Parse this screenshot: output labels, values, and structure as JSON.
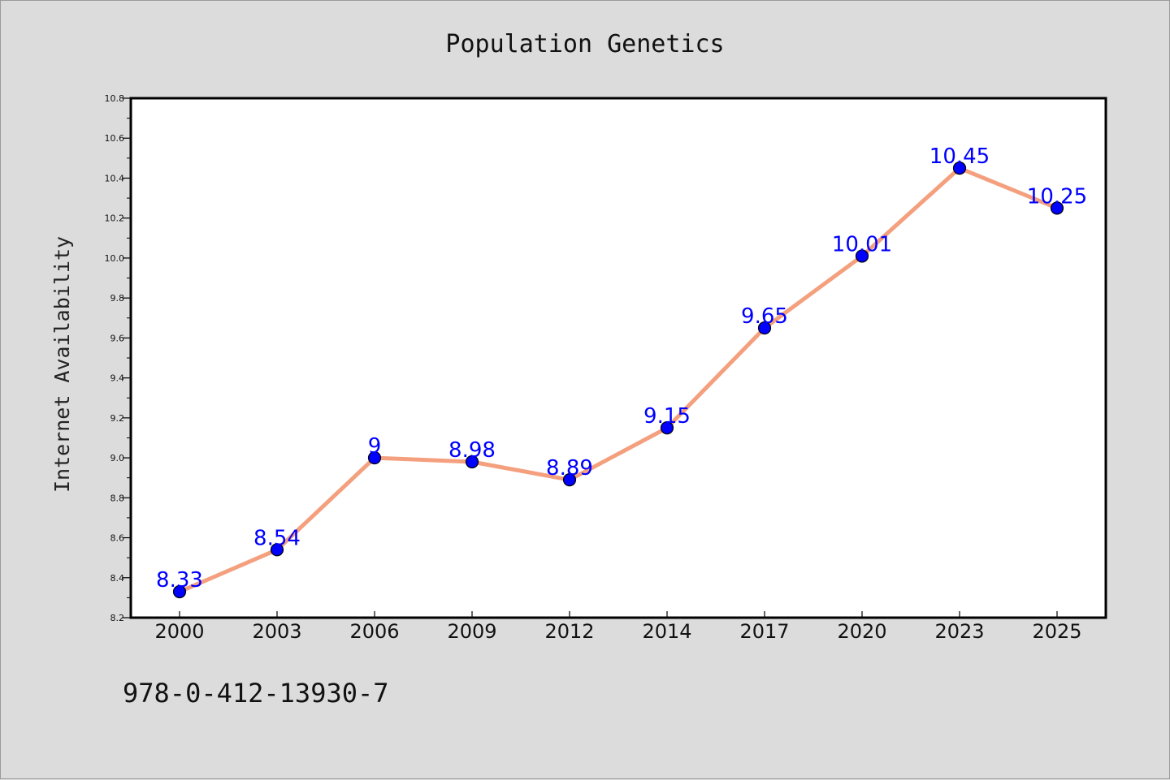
{
  "chart_data": {
    "type": "line",
    "title": "Population Genetics",
    "xlabel": "",
    "ylabel": "Internet Availability",
    "categories": [
      "2000",
      "2003",
      "2006",
      "2009",
      "2012",
      "2014",
      "2017",
      "2020",
      "2023",
      "2025"
    ],
    "series": [
      {
        "values": [
          8.33,
          8.54,
          9,
          8.98,
          8.89,
          9.15,
          9.65,
          10.01,
          10.45,
          10.25
        ],
        "labels": [
          "8.33",
          "8.54",
          "9",
          "8.98",
          "8.89",
          "9.15",
          "9.65",
          "10.01",
          "10.45",
          "10.25"
        ],
        "line_color": "#f4a07e",
        "marker_color": "#0000ff",
        "label_color": "#0000ff"
      }
    ],
    "ylim": [
      8.2,
      10.8
    ],
    "yticks": [
      "8.2",
      "8.4",
      "8.6",
      "8.8",
      "9.0",
      "9.2",
      "9.4",
      "9.6",
      "9.8",
      "10.0",
      "10.2",
      "10.4",
      "10.6",
      "10.8"
    ],
    "grid": false,
    "legend": "none"
  },
  "footer": {
    "isbn": "978-0-412-13930-7"
  },
  "colors": {
    "background": "#dcdcdc",
    "plot_background": "#ffffff",
    "axis": "#000000"
  }
}
